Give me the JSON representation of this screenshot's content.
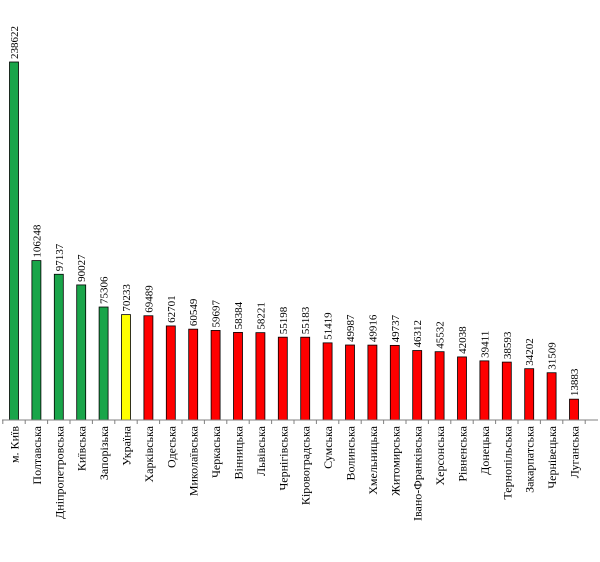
{
  "chart_data": {
    "type": "bar",
    "title": "",
    "xlabel": "",
    "ylabel": "",
    "ylim": [
      0,
      238622
    ],
    "grid": false,
    "legend": "none",
    "categories": [
      "м. Київ",
      "Полтавська",
      "Дніпропетровська",
      "Київська",
      "Запорізька",
      "Україна",
      "Харківська",
      "Одеська",
      "Миколаївська",
      "Черкаська",
      "Вінницька",
      "Львівська",
      "Чернігівська",
      "Кіровоградська",
      "Сумська",
      "Волинська",
      "Хмельницька",
      "Житомирська",
      "Івано-Франківська",
      "Херсонська",
      "Рівненська",
      "Донецька",
      "Тернопільська",
      "Закарпатська",
      "Чернівецька",
      "Луганська"
    ],
    "values": [
      238622,
      106248,
      97137,
      90027,
      75306,
      70233,
      69489,
      62701,
      60549,
      59697,
      58384,
      58221,
      55198,
      55183,
      51419,
      49987,
      49916,
      49737,
      46312,
      45532,
      42038,
      39411,
      38593,
      34202,
      31509,
      13883
    ],
    "bar_colors": [
      "#1aa54a",
      "#1aa54a",
      "#1aa54a",
      "#1aa54a",
      "#1aa54a",
      "#ffff00",
      "#ff0000",
      "#ff0000",
      "#ff0000",
      "#ff0000",
      "#ff0000",
      "#ff0000",
      "#ff0000",
      "#ff0000",
      "#ff0000",
      "#ff0000",
      "#ff0000",
      "#ff0000",
      "#ff0000",
      "#ff0000",
      "#ff0000",
      "#ff0000",
      "#ff0000",
      "#ff0000",
      "#ff0000",
      "#ff0000"
    ],
    "axis_color": "#808080",
    "bar_outline": "#000000"
  }
}
